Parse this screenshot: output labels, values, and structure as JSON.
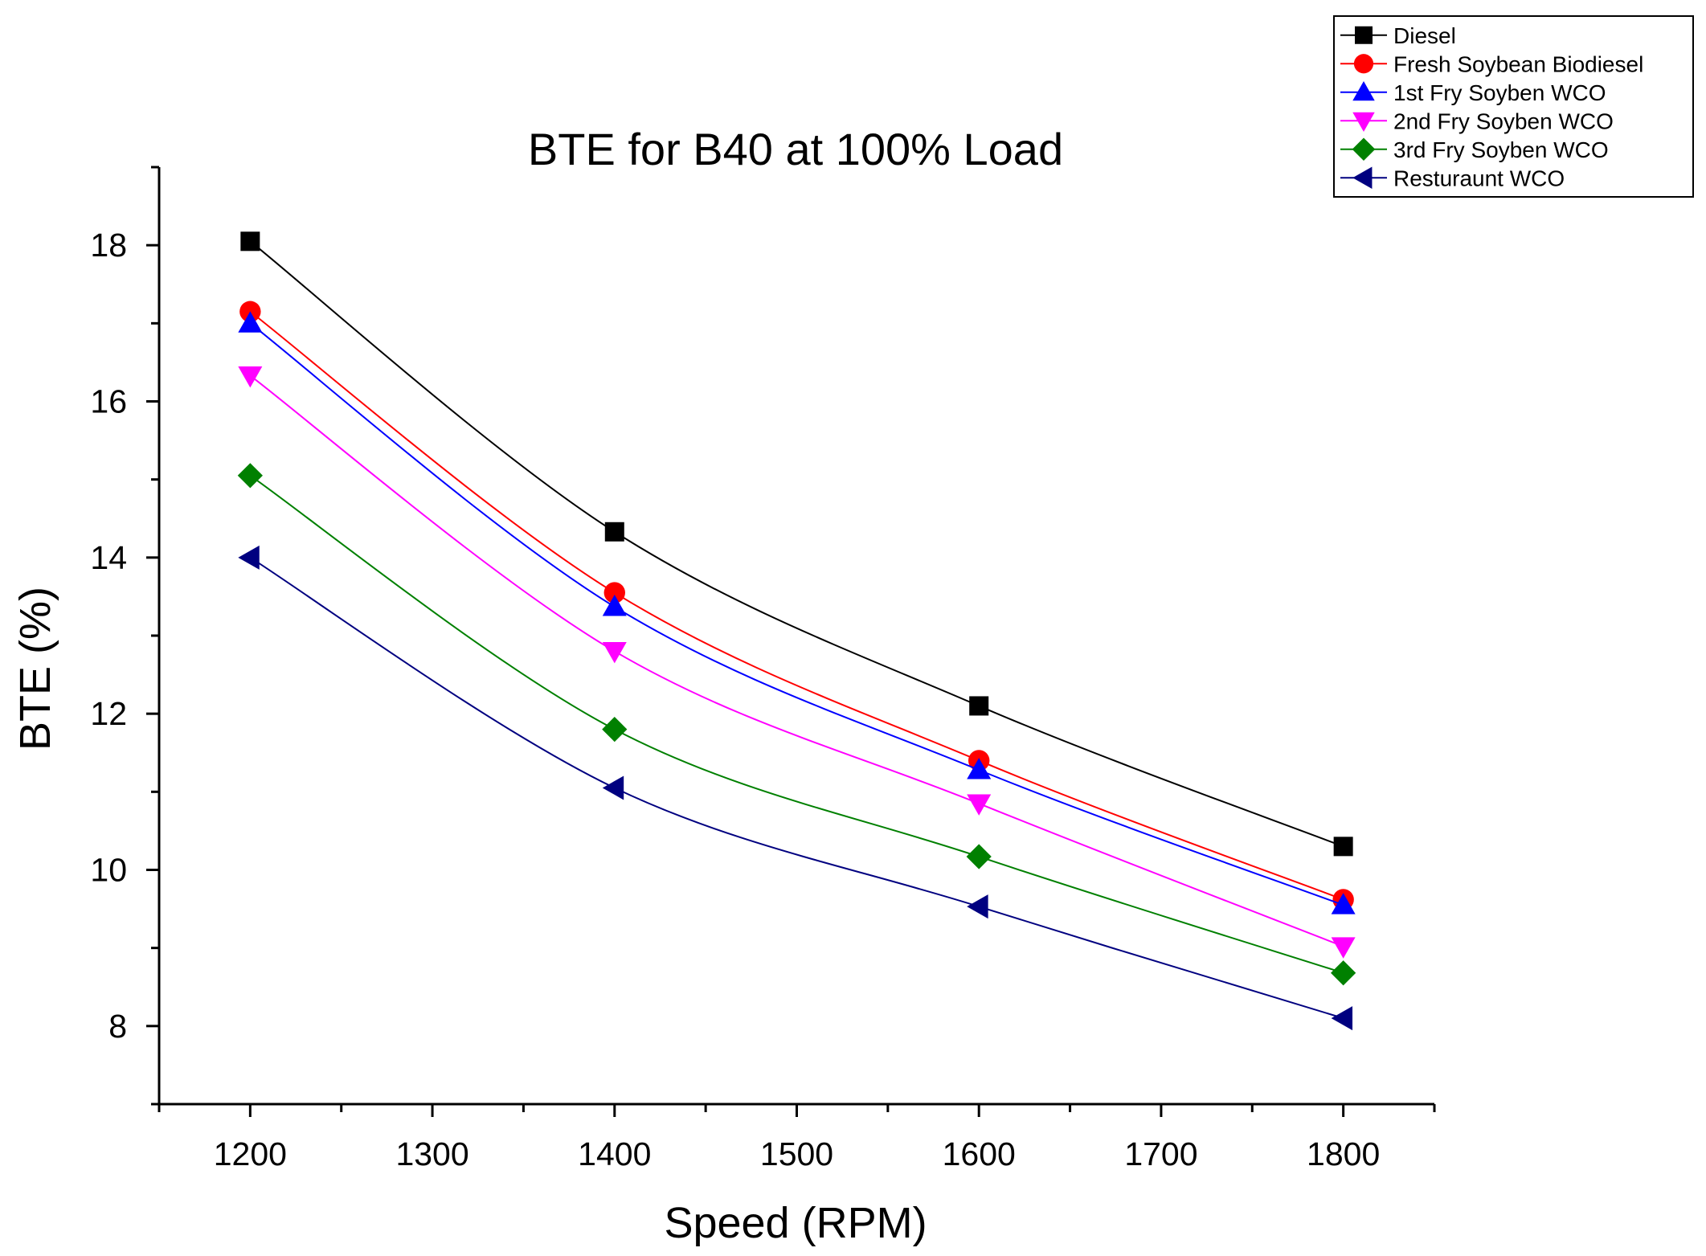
{
  "chart_data": {
    "type": "line",
    "title": "BTE for B40 at 100% Load",
    "xlabel": "Speed (RPM)",
    "ylabel": "BTE (%)",
    "xlim": [
      1150,
      1850
    ],
    "ylim": [
      7,
      19
    ],
    "x_ticks": [
      1200,
      1300,
      1400,
      1500,
      1600,
      1700,
      1800
    ],
    "y_ticks": [
      8,
      10,
      12,
      14,
      16,
      18
    ],
    "x": [
      1200,
      1400,
      1600,
      1800
    ],
    "grid": false,
    "legend_position": "top-right",
    "series": [
      {
        "name": "Diesel",
        "color": "#000000",
        "marker": "square",
        "values": [
          18.05,
          14.33,
          12.1,
          10.3
        ]
      },
      {
        "name": "Fresh Soybean Biodiesel",
        "color": "#ff0000",
        "marker": "circle",
        "values": [
          17.15,
          13.55,
          11.4,
          9.62
        ]
      },
      {
        "name": "1st Fry Soyben WCO",
        "color": "#0000ff",
        "marker": "triangle-up",
        "values": [
          17.0,
          13.37,
          11.28,
          9.55
        ]
      },
      {
        "name": "2nd Fry Soyben WCO",
        "color": "#ff00ff",
        "marker": "triangle-down",
        "values": [
          16.33,
          12.8,
          10.85,
          9.02
        ]
      },
      {
        "name": "3rd Fry Soyben WCO",
        "color": "#008000",
        "marker": "diamond",
        "values": [
          15.05,
          11.8,
          10.17,
          8.68
        ]
      },
      {
        "name": "Resturaunt WCO",
        "color": "#000080",
        "marker": "triangle-left",
        "values": [
          14.0,
          11.05,
          9.53,
          8.1
        ]
      }
    ]
  }
}
